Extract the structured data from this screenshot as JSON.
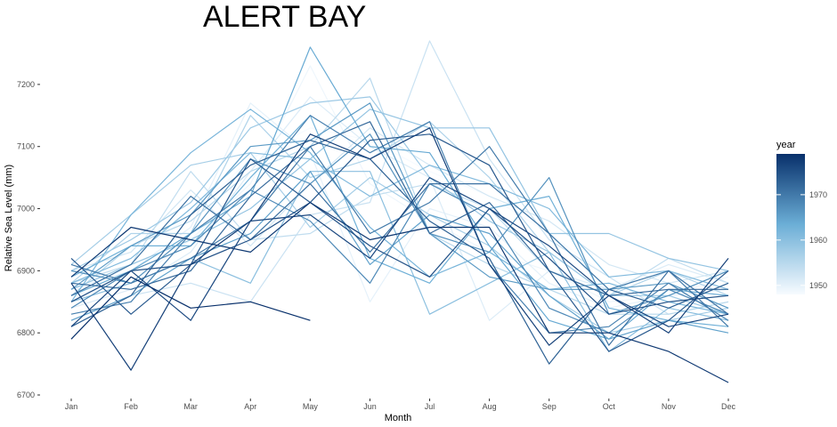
{
  "chart_data": {
    "type": "line",
    "title": "ALERT BAY",
    "xlabel": "Month",
    "ylabel": "Relative Sea Level (mm)",
    "categories": [
      "Jan",
      "Feb",
      "Mar",
      "Apr",
      "May",
      "Jun",
      "Jul",
      "Aug",
      "Sep",
      "Oct",
      "Nov",
      "Dec"
    ],
    "yticks": [
      6700,
      6800,
      6900,
      7000,
      7100,
      7200
    ],
    "ylim": [
      6700,
      7250
    ],
    "grid": false,
    "legend": {
      "title": "year",
      "position": "right",
      "ticks": [
        1950,
        1960,
        1970
      ],
      "range": [
        1948,
        1979
      ],
      "color_low": "#f7fbff",
      "color_high": "#08306b"
    },
    "series": [
      {
        "year": 1948,
        "values": [
          6890,
          6920,
          6990,
          7080,
          7130,
          7110,
          7060,
          7020,
          6960,
          6890,
          6850,
          6860
        ]
      },
      {
        "year": 1949,
        "values": [
          6860,
          6880,
          6950,
          7040,
          7230,
          7040,
          6980,
          6930,
          6900,
          6850,
          6860,
          6890
        ]
      },
      {
        "year": 1950,
        "values": [
          6870,
          6900,
          6970,
          7170,
          7090,
          6850,
          7000,
          6970,
          6880,
          6840,
          6860,
          6870
        ]
      },
      {
        "year": 1951,
        "values": [
          6840,
          6870,
          6930,
          7060,
          7180,
          7100,
          7050,
          6820,
          6900,
          6870,
          6910,
          6880
        ]
      },
      {
        "year": 1952,
        "values": [
          6900,
          6930,
          7030,
          6940,
          7040,
          7130,
          7070,
          7020,
          6980,
          6910,
          6880,
          6900
        ]
      },
      {
        "year": 1953,
        "values": [
          6820,
          6860,
          6880,
          6850,
          6990,
          7010,
          7270,
          7080,
          6950,
          6890,
          6830,
          6850
        ]
      },
      {
        "year": 1954,
        "values": [
          6880,
          6910,
          7060,
          6950,
          6960,
          7020,
          7040,
          7000,
          6900,
          6860,
          6920,
          6880
        ]
      },
      {
        "year": 1955,
        "values": [
          6860,
          6940,
          6980,
          7060,
          7100,
          7210,
          6960,
          6910,
          6870,
          6830,
          6830,
          6850
        ]
      },
      {
        "year": 1956,
        "values": [
          6880,
          6960,
          6960,
          7150,
          7050,
          7080,
          7140,
          7050,
          6930,
          6860,
          6900,
          6860
        ]
      },
      {
        "year": 1957,
        "values": [
          6910,
          6990,
          7070,
          7090,
          6970,
          7050,
          6990,
          6940,
          6860,
          6800,
          6820,
          6840
        ]
      },
      {
        "year": 1958,
        "values": [
          6900,
          6950,
          7010,
          7130,
          7170,
          7180,
          7050,
          6980,
          6930,
          6860,
          6860,
          6830
        ]
      },
      {
        "year": 1959,
        "values": [
          6870,
          6910,
          6950,
          7000,
          7080,
          7160,
          7130,
          7130,
          6960,
          6960,
          6920,
          6900
        ]
      },
      {
        "year": 1960,
        "values": [
          6850,
          6880,
          6920,
          6880,
          7060,
          7060,
          6830,
          6880,
          6930,
          6770,
          6840,
          6820
        ]
      },
      {
        "year": 1961,
        "values": [
          6880,
          6920,
          7000,
          7090,
          7080,
          7020,
          7070,
          7040,
          7000,
          6890,
          6900,
          6870
        ]
      },
      {
        "year": 1962,
        "values": [
          6850,
          6990,
          7090,
          7160,
          7090,
          6970,
          6890,
          6930,
          6870,
          6880,
          6850,
          6830
        ]
      },
      {
        "year": 1963,
        "values": [
          6890,
          6940,
          6940,
          7050,
          7150,
          6920,
          6880,
          7000,
          7020,
          6840,
          6820,
          6810
        ]
      },
      {
        "year": 1964,
        "values": [
          6860,
          6900,
          6960,
          7020,
          7260,
          7100,
          7090,
          6940,
          6820,
          6790,
          6870,
          6860
        ]
      },
      {
        "year": 1965,
        "values": [
          6820,
          6860,
          6920,
          6960,
          7060,
          6910,
          6990,
          6960,
          6860,
          6790,
          6820,
          6800
        ]
      },
      {
        "year": 1966,
        "values": [
          6870,
          6940,
          6990,
          7100,
          7110,
          7170,
          6960,
          6890,
          6870,
          6870,
          6880,
          6840
        ]
      },
      {
        "year": 1967,
        "values": [
          6900,
          6880,
          6960,
          7080,
          7040,
          7120,
          6960,
          6930,
          7050,
          6830,
          6860,
          6900
        ]
      },
      {
        "year": 1968,
        "values": [
          6840,
          6900,
          6940,
          7030,
          6980,
          6880,
          7040,
          6990,
          6840,
          6800,
          6870,
          6830
        ]
      },
      {
        "year": 1969,
        "values": [
          6830,
          6850,
          6960,
          7030,
          7150,
          7090,
          7140,
          6910,
          6800,
          6810,
          6880,
          6820
        ]
      },
      {
        "year": 1970,
        "values": [
          6910,
          6880,
          6920,
          6980,
          7100,
          6960,
          7010,
          7100,
          6960,
          6870,
          6900,
          6810
        ]
      },
      {
        "year": 1971,
        "values": [
          6860,
          6910,
          7020,
          6950,
          7040,
          6930,
          7040,
          7040,
          6960,
          6780,
          6900,
          6830
        ]
      },
      {
        "year": 1972,
        "values": [
          6880,
          6870,
          6900,
          7020,
          7100,
          7140,
          6960,
          7010,
          6900,
          6860,
          6870,
          6870
        ]
      },
      {
        "year": 1973,
        "values": [
          6810,
          6860,
          6990,
          7070,
          7110,
          7080,
          6980,
          6920,
          6750,
          6870,
          6840,
          6880
        ]
      },
      {
        "year": 1974,
        "values": [
          6920,
          6830,
          6910,
          7080,
          7010,
          7110,
          7120,
          7070,
          6900,
          6770,
          6820,
          6900
        ]
      },
      {
        "year": 1975,
        "values": [
          6850,
          6900,
          6910,
          6950,
          7010,
          6940,
          6890,
          7000,
          6920,
          6830,
          6850,
          6860
        ]
      },
      {
        "year": 1976,
        "values": [
          6810,
          6900,
          6820,
          6980,
          6990,
          6920,
          7050,
          7000,
          6940,
          6860,
          6810,
          6830
        ]
      },
      {
        "year": 1977,
        "values": [
          6880,
          6740,
          6910,
          6980,
          7120,
          7080,
          7130,
          6910,
          6780,
          6860,
          6800,
          6920
        ]
      },
      {
        "year": 1978,
        "values": [
          6890,
          6970,
          6950,
          6930,
          7010,
          6950,
          6970,
          6970,
          6800,
          6800,
          6770,
          6720
        ]
      },
      {
        "year": 1979,
        "values": [
          6790,
          6890,
          6840,
          6850,
          6820,
          null,
          null,
          null,
          null,
          null,
          null,
          null
        ]
      }
    ]
  }
}
